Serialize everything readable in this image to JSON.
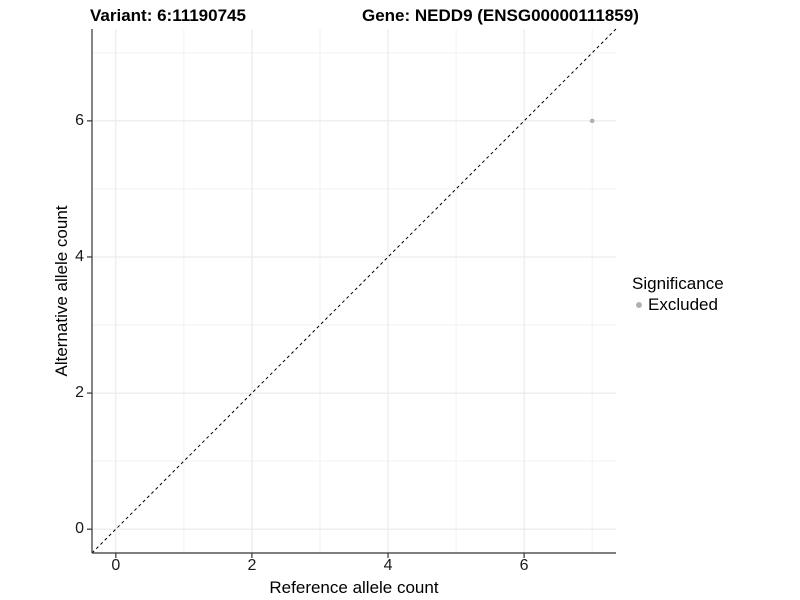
{
  "chart_data": {
    "type": "scatter",
    "title_left": "Variant: 6:11190745",
    "title_right": "Gene: NEDD9 (ENSG00000111859)",
    "xlabel": "Reference allele count",
    "ylabel": "Alternative allele count",
    "xlim": [
      -0.35,
      7.35
    ],
    "ylim": [
      -0.35,
      7.35
    ],
    "x_ticks": [
      0,
      2,
      4,
      6
    ],
    "y_ticks": [
      0,
      2,
      4,
      6
    ],
    "x_minor_gridlines": [
      1,
      3,
      5,
      7
    ],
    "y_minor_gridlines": [
      1,
      3,
      5,
      7
    ],
    "grid": "major and minor, light gray on white",
    "reference_line": {
      "slope": 1,
      "intercept": 0,
      "style": "dashed",
      "color": "#000000"
    },
    "series": [
      {
        "name": "Excluded",
        "color": "#b1b1b1",
        "points": [
          {
            "x": 7,
            "y": 6
          }
        ]
      }
    ],
    "legend": {
      "title": "Significance",
      "position": "right",
      "items": [
        {
          "label": "Excluded",
          "color": "#b1b1b1"
        }
      ]
    }
  },
  "style_colors": {
    "axis_line": "#333333",
    "grid_major": "#e7e7e7",
    "grid_minor": "#f2f2f2",
    "text": "#000000",
    "background": "#ffffff"
  }
}
